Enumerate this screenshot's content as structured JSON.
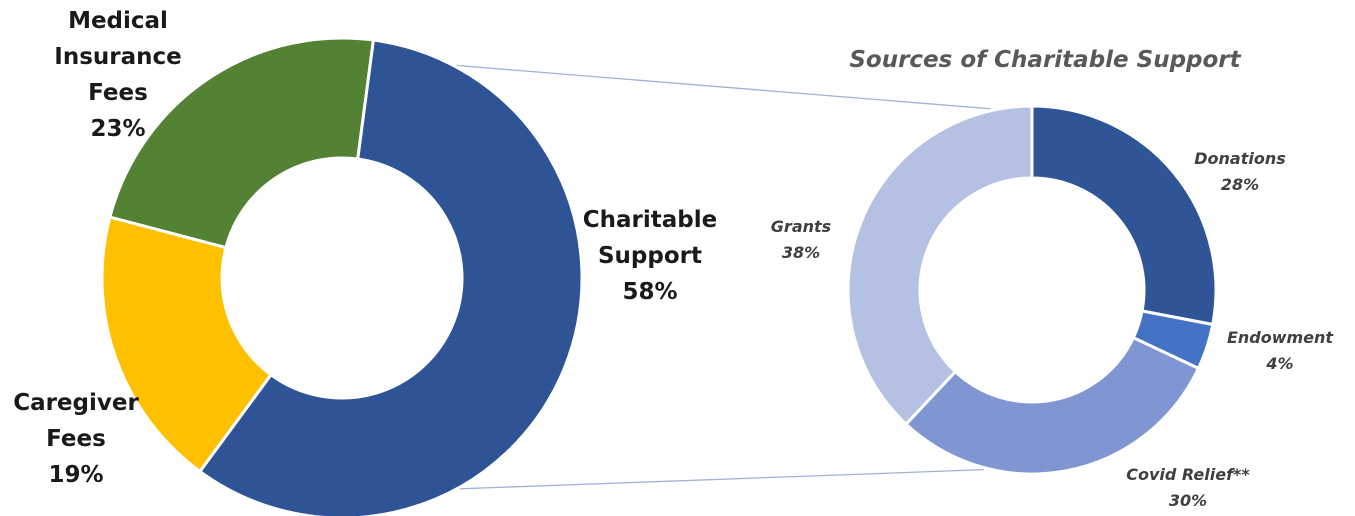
{
  "chart_data": [
    {
      "type": "pie",
      "style": "donut",
      "categories": [
        "Charitable Support",
        "Caregiver Fees",
        "Medical Insurance Fees"
      ],
      "labels": [
        [
          "Charitable",
          "Support",
          "58%"
        ],
        [
          "Caregiver",
          "Fees",
          "19%"
        ],
        [
          "Medical",
          "Insurance",
          "Fees",
          "23%"
        ]
      ],
      "values": [
        58,
        19,
        23
      ],
      "colors": [
        "#2F5496",
        "#FFC000",
        "#548235"
      ]
    },
    {
      "type": "pie",
      "style": "donut",
      "title": "Sources of Charitable Support",
      "categories": [
        "Donations",
        "Endowment",
        "Covid Relief**",
        "Grants"
      ],
      "labels": [
        [
          "Donations",
          "28%"
        ],
        [
          "Endowment",
          "4%"
        ],
        [
          "Covid Relief**",
          "30%"
        ],
        [
          "Grants",
          "38%"
        ]
      ],
      "values": [
        28,
        4,
        30,
        38
      ],
      "colors": [
        "#2F5597",
        "#4472C4",
        "#7F96D2",
        "#B4C1E2"
      ]
    }
  ]
}
